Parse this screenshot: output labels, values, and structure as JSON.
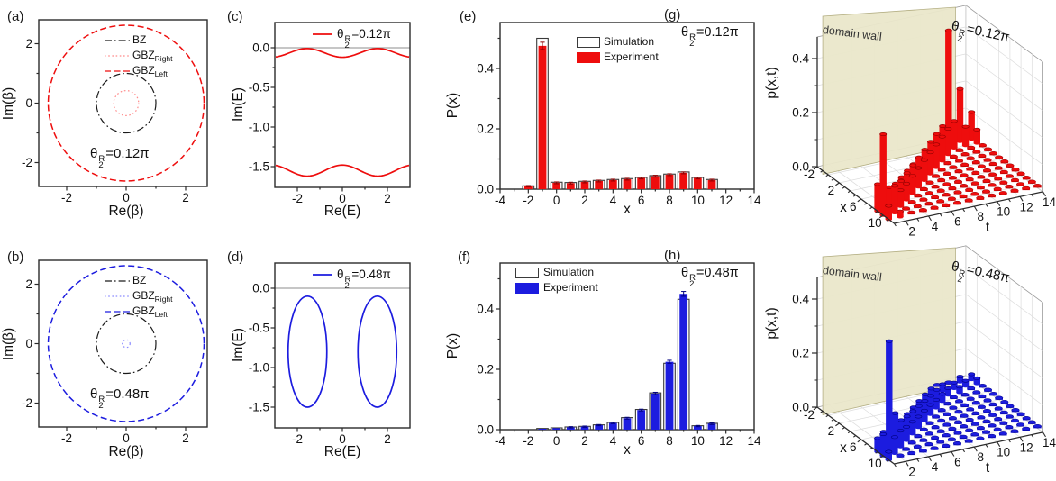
{
  "colors": {
    "red": "#ee0d0d",
    "red_light": "#ff8a8a",
    "red_dark": "#8f0000",
    "blue": "#1c1cdf",
    "blue_light": "#8c8cff",
    "blue_dark": "#000080",
    "black": "#1a1a1a",
    "sim_edge": "#3a3a3a",
    "gray_line": "#8c8c8c",
    "wall_fill": "#eae7ca",
    "wall_edge": "#b3ae82",
    "grid": "#dcdcdc",
    "frame": "#2b2b2b",
    "box3d": "#9a9a9a"
  },
  "chart_data": [
    {
      "id": "a",
      "letter": "(a)",
      "type": "line",
      "subtype": "circles",
      "xlabel": "Re(β)",
      "ylabel": "Im(β)",
      "xticks": [
        -2,
        0,
        2
      ],
      "yticks": [
        -2,
        0,
        2
      ],
      "xlim": [
        -2.83,
        2.83
      ],
      "ylim": [
        -2.8,
        2.8
      ],
      "theta": {
        "sym": "θ",
        "sup": "R",
        "sub": "2",
        "val": "=0.12π"
      },
      "legend": [
        {
          "label": "BZ",
          "sub": "",
          "style": "dashdot",
          "color": "black"
        },
        {
          "label": "GBZ",
          "sub": "Right",
          "style": "dotted",
          "color": "red_light"
        },
        {
          "label": "GBZ",
          "sub": "Left",
          "style": "dashed",
          "color": "red"
        }
      ],
      "circles": [
        {
          "name": "BZ",
          "r": 1.0,
          "style": "dashdot",
          "color": "black"
        },
        {
          "name": "GBZ_Right",
          "r": 0.42,
          "style": "dotted",
          "color": "red_light"
        },
        {
          "name": "GBZ_Left",
          "r": 2.62,
          "style": "dashed",
          "color": "red"
        }
      ]
    },
    {
      "id": "b",
      "letter": "(b)",
      "type": "line",
      "subtype": "circles",
      "xlabel": "Re(β)",
      "ylabel": "Im(β)",
      "xticks": [
        -2,
        0,
        2
      ],
      "yticks": [
        -2,
        0,
        2
      ],
      "xlim": [
        -2.83,
        2.83
      ],
      "ylim": [
        -2.8,
        2.8
      ],
      "theta": {
        "sym": "θ",
        "sup": "R",
        "sub": "2",
        "val": "=0.48π"
      },
      "legend": [
        {
          "label": "BZ",
          "sub": "",
          "style": "dashdot",
          "color": "black"
        },
        {
          "label": "GBZ",
          "sub": "Right",
          "style": "dotted",
          "color": "blue_light"
        },
        {
          "label": "GBZ",
          "sub": "Left",
          "style": "dashed",
          "color": "blue"
        }
      ],
      "circles": [
        {
          "name": "BZ",
          "r": 1.0,
          "style": "dashdot",
          "color": "black"
        },
        {
          "name": "GBZ_Right",
          "r": 0.13,
          "style": "dotted",
          "color": "blue_light"
        },
        {
          "name": "GBZ_Left",
          "r": 2.62,
          "style": "dashed",
          "color": "blue"
        }
      ]
    },
    {
      "id": "c",
      "letter": "(c)",
      "type": "line",
      "subtype": "bands",
      "xlabel": "Re(E)",
      "ylabel": "Im(E)",
      "color": "red",
      "xticks": [
        -2,
        0,
        2
      ],
      "yticks": [
        0.0,
        -0.5,
        -1.0,
        -1.5
      ],
      "xlim": [
        -3.0,
        3.0
      ],
      "ylim": [
        0.32,
        -1.76
      ],
      "zero_line": 0,
      "theta": {
        "sym": "θ",
        "sup": "R",
        "sub": "2",
        "val": "=0.12π"
      },
      "bands": [
        {
          "offset": -0.065,
          "amp": -0.055,
          "freq": 2
        },
        {
          "offset": -1.55,
          "amp": 0.07,
          "freq": 2
        }
      ]
    },
    {
      "id": "d",
      "letter": "(d)",
      "type": "line",
      "subtype": "ellipses",
      "xlabel": "Re(E)",
      "ylabel": "Im(E)",
      "color": "blue",
      "xticks": [
        -2,
        0,
        2
      ],
      "yticks": [
        0.0,
        -0.5,
        -1.0,
        -1.5
      ],
      "xlim": [
        -3.0,
        3.0
      ],
      "ylim": [
        0.32,
        -1.76
      ],
      "zero_line": 0,
      "theta": {
        "sym": "θ",
        "sup": "R",
        "sub": "2",
        "val": "=0.48π"
      },
      "ellipses": [
        {
          "cx": -1.55,
          "cy": -0.8,
          "rx": 0.86,
          "ry": 0.7
        },
        {
          "cx": 1.55,
          "cy": -0.8,
          "rx": 0.86,
          "ry": 0.7
        }
      ]
    },
    {
      "id": "e",
      "letter": "(e)",
      "type": "bar",
      "xlabel": "x",
      "ylabel": "P(x)",
      "color": "red",
      "xticks": [
        -4,
        -2,
        0,
        2,
        4,
        6,
        8,
        10,
        12,
        14
      ],
      "yticks": [
        0.0,
        0.2,
        0.4
      ],
      "xlim": [
        -4,
        14
      ],
      "ylim": [
        0,
        0.55
      ],
      "theta": {
        "sym": "θ",
        "sup": "R",
        "sub": "2",
        "val": "=0.12π"
      },
      "legend_labels": [
        "Simulation",
        "Experiment"
      ],
      "categories": [
        -2,
        -1,
        0,
        1,
        2,
        3,
        4,
        5,
        6,
        7,
        8,
        9,
        10,
        11
      ],
      "series": [
        {
          "name": "Simulation",
          "values": [
            0.011,
            0.5,
            0.023,
            0.022,
            0.026,
            0.029,
            0.032,
            0.035,
            0.039,
            0.045,
            0.05,
            0.057,
            0.039,
            0.032
          ]
        },
        {
          "name": "Experiment",
          "values": [
            0.01,
            0.475,
            0.021,
            0.02,
            0.024,
            0.027,
            0.03,
            0.033,
            0.037,
            0.043,
            0.048,
            0.054,
            0.037,
            0.03
          ],
          "errors": [
            0.002,
            0.012,
            0.003,
            0.003,
            0.003,
            0.003,
            0.003,
            0.003,
            0.003,
            0.003,
            0.003,
            0.003,
            0.003,
            0.003
          ]
        }
      ]
    },
    {
      "id": "f",
      "letter": "(f)",
      "type": "bar",
      "xlabel": "x",
      "ylabel": "P(x)",
      "color": "blue",
      "xticks": [
        -4,
        -2,
        0,
        2,
        4,
        6,
        8,
        10,
        12,
        14
      ],
      "yticks": [
        0.0,
        0.2,
        0.4
      ],
      "xlim": [
        -4,
        14
      ],
      "ylim": [
        0,
        0.55
      ],
      "theta": {
        "sym": "θ",
        "sup": "R",
        "sub": "2",
        "val": "=0.48π"
      },
      "legend_labels": [
        "Simulation",
        "Experiment"
      ],
      "categories": [
        -1,
        0,
        1,
        2,
        3,
        4,
        5,
        6,
        7,
        8,
        9,
        10,
        11
      ],
      "series": [
        {
          "name": "Simulation",
          "values": [
            0.004,
            0.006,
            0.009,
            0.011,
            0.016,
            0.024,
            0.04,
            0.067,
            0.122,
            0.22,
            0.432,
            0.013,
            0.021
          ]
        },
        {
          "name": "Experiment",
          "values": [
            0.003,
            0.005,
            0.008,
            0.01,
            0.015,
            0.022,
            0.038,
            0.065,
            0.12,
            0.225,
            0.45,
            0.012,
            0.02
          ],
          "errors": [
            0.001,
            0.001,
            0.002,
            0.002,
            0.002,
            0.002,
            0.003,
            0.003,
            0.004,
            0.005,
            0.008,
            0.002,
            0.003
          ]
        }
      ]
    },
    {
      "id": "g",
      "letter": "(g)",
      "type": "bar3d",
      "zlabel": "p(x,t)",
      "xlabel": "x",
      "tlabel": "t",
      "color": "red",
      "wall_label": "domain wall",
      "theta": {
        "sym": "θ",
        "sup": "R",
        "sub": "2",
        "val": "=0.12π"
      },
      "xticks": [
        -2,
        2,
        6,
        10
      ],
      "tticks": [
        2,
        4,
        6,
        8,
        10,
        12,
        14
      ],
      "zticks": [
        0.0,
        0.2,
        0.4
      ],
      "x_start": -2,
      "t_start": 1,
      "zlim": [
        0,
        0.48
      ],
      "matrix": [
        [
          0,
          0,
          0,
          0,
          0,
          0,
          0,
          0,
          0,
          0,
          0,
          0.1,
          0.3,
          0.05
        ],
        [
          0,
          0,
          0,
          0,
          0,
          0,
          0,
          0,
          0,
          0,
          0.05,
          0.08,
          0.1,
          0.02
        ],
        [
          0,
          0,
          0,
          0,
          0,
          0,
          0,
          0,
          0,
          0.03,
          0.06,
          0.06,
          0.015,
          0.015
        ],
        [
          0,
          0,
          0,
          0,
          0,
          0,
          0,
          0,
          0.03,
          0.055,
          0.06,
          0.012,
          0.012,
          0.012
        ],
        [
          0,
          0,
          0,
          0,
          0,
          0,
          0,
          0.03,
          0.06,
          0.065,
          0.012,
          0.012,
          0.012,
          0.012
        ],
        [
          0,
          0,
          0,
          0,
          0,
          0,
          0.03,
          0.065,
          0.07,
          0.012,
          0.012,
          0.012,
          0.012,
          0.012
        ],
        [
          0,
          0,
          0,
          0,
          0,
          0.03,
          0.07,
          0.075,
          0.012,
          0.012,
          0.012,
          0.012,
          0.012,
          0.012
        ],
        [
          0,
          0,
          0,
          0,
          0.03,
          0.075,
          0.08,
          0.012,
          0.012,
          0.012,
          0.012,
          0.012,
          0.012,
          0.012
        ],
        [
          0,
          0,
          0,
          0.03,
          0.08,
          0.085,
          0.012,
          0.012,
          0.012,
          0.012,
          0.012,
          0.012,
          0.012,
          0.012
        ],
        [
          0,
          0,
          0.03,
          0.085,
          0.09,
          0.012,
          0.012,
          0.012,
          0.012,
          0.012,
          0.012,
          0.012,
          0.012,
          0.012
        ],
        [
          0,
          0.03,
          0.09,
          0.095,
          0.012,
          0.012,
          0.012,
          0.012,
          0.012,
          0.012,
          0.012,
          0.012,
          0.012,
          0.012
        ],
        [
          0,
          0.42,
          0.1,
          0.012,
          0.012,
          0.012,
          0.012,
          0.012,
          0.012,
          0.012,
          0.012,
          0.012,
          0.012,
          0.012
        ],
        [
          0,
          0.195,
          0.07,
          0.012,
          0.012,
          0.012,
          0.012,
          0.012,
          0.012,
          0.012,
          0.012,
          0.012,
          0.012,
          0.012
        ],
        [
          0,
          0.1,
          0.05,
          0.012,
          0.012,
          0.012,
          0.012,
          0.012,
          0.012,
          0.012,
          0.012,
          0.012,
          0.012,
          0.012
        ]
      ]
    },
    {
      "id": "h",
      "letter": "(h)",
      "type": "bar3d",
      "zlabel": "p(x,t)",
      "xlabel": "x",
      "tlabel": "t",
      "color": "blue",
      "wall_label": "domain wall",
      "theta": {
        "sym": "θ",
        "sup": "R",
        "sub": "2",
        "val": "=0.48π"
      },
      "xticks": [
        -2,
        2,
        6,
        10
      ],
      "tticks": [
        2,
        4,
        6,
        8,
        10,
        12,
        14
      ],
      "zticks": [
        0.0,
        0.2,
        0.4
      ],
      "x_start": -2,
      "t_start": 1,
      "zlim": [
        0,
        0.48
      ],
      "matrix": [
        [
          0,
          0,
          0,
          0,
          0,
          0,
          0,
          0,
          0,
          0,
          0,
          0.05,
          0.08,
          0.03
        ],
        [
          0,
          0,
          0,
          0,
          0,
          0,
          0,
          0,
          0,
          0,
          0.05,
          0.4,
          0.06,
          0.015
        ],
        [
          0,
          0,
          0,
          0,
          0,
          0,
          0,
          0,
          0,
          0.03,
          0.11,
          0.06,
          0.01,
          0.01
        ],
        [
          0,
          0,
          0,
          0,
          0,
          0,
          0,
          0,
          0.02,
          0.06,
          0.05,
          0.01,
          0.01,
          0.01
        ],
        [
          0,
          0,
          0,
          0,
          0,
          0,
          0,
          0.02,
          0.05,
          0.045,
          0.01,
          0.01,
          0.01,
          0.01
        ],
        [
          0,
          0,
          0,
          0,
          0,
          0,
          0.02,
          0.045,
          0.04,
          0.01,
          0.01,
          0.01,
          0.01,
          0.01
        ],
        [
          0,
          0,
          0,
          0,
          0,
          0.02,
          0.04,
          0.038,
          0.01,
          0.01,
          0.01,
          0.01,
          0.01,
          0.01
        ],
        [
          0,
          0,
          0,
          0,
          0.02,
          0.035,
          0.035,
          0.01,
          0.01,
          0.01,
          0.01,
          0.01,
          0.01,
          0.01
        ],
        [
          0,
          0,
          0,
          0.02,
          0.03,
          0.03,
          0.01,
          0.01,
          0.01,
          0.01,
          0.01,
          0.01,
          0.01,
          0.01
        ],
        [
          0,
          0,
          0.018,
          0.028,
          0.028,
          0.01,
          0.01,
          0.01,
          0.01,
          0.01,
          0.01,
          0.01,
          0.01,
          0.01
        ],
        [
          0,
          0.015,
          0.025,
          0.025,
          0.01,
          0.01,
          0.01,
          0.01,
          0.01,
          0.01,
          0.01,
          0.01,
          0.01,
          0.01
        ],
        [
          0,
          0.015,
          0.022,
          0.022,
          0.01,
          0.01,
          0.01,
          0.01,
          0.01,
          0.01,
          0.01,
          0.01,
          0.01,
          0.01
        ],
        [
          0,
          0.02,
          0.02,
          0.01,
          0.01,
          0.01,
          0.01,
          0.01,
          0.01,
          0.01,
          0.01,
          0.01,
          0.01,
          0.01
        ],
        [
          0,
          0.02,
          0.02,
          0.01,
          0.01,
          0.01,
          0.01,
          0.01,
          0.01,
          0.01,
          0.01,
          0.01,
          0.01,
          0.01
        ]
      ]
    }
  ]
}
